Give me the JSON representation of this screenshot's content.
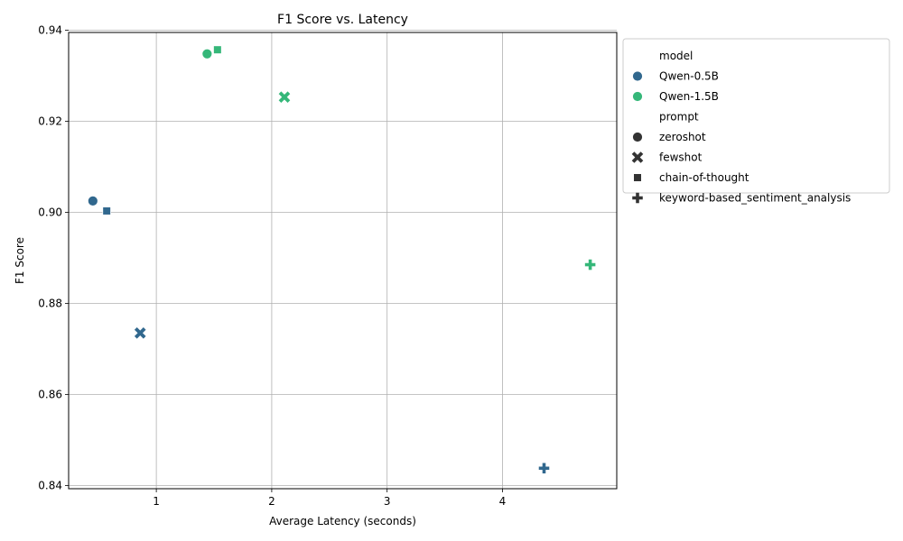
{
  "chart_data": {
    "type": "scatter",
    "title": "F1 Score vs. Latency",
    "xlabel": "Average Latency (seconds)",
    "ylabel": "F1 Score",
    "xlim": [
      0.24,
      4.99
    ],
    "ylim": [
      0.8393,
      0.9395
    ],
    "x_ticks": [
      1,
      2,
      3,
      4
    ],
    "y_ticks": [
      0.84,
      0.86,
      0.88,
      0.9,
      0.92,
      0.94
    ],
    "grid": true,
    "legend_position": "outside-top-right",
    "legend": {
      "hue_title": "model",
      "style_title": "prompt",
      "models": [
        {
          "name": "Qwen-0.5B",
          "color": "#31688e"
        },
        {
          "name": "Qwen-1.5B",
          "color": "#35b779"
        }
      ],
      "prompts": [
        {
          "name": "zeroshot",
          "marker": "circle"
        },
        {
          "name": "fewshot",
          "marker": "x"
        },
        {
          "name": "chain-of-thought",
          "marker": "square"
        },
        {
          "name": "keyword-based_sentiment_analysis",
          "marker": "plus"
        }
      ]
    },
    "points": [
      {
        "model": "Qwen-0.5B",
        "prompt": "zeroshot",
        "x": 0.45,
        "y": 0.9025
      },
      {
        "model": "Qwen-0.5B",
        "prompt": "chain-of-thought",
        "x": 0.57,
        "y": 0.9003
      },
      {
        "model": "Qwen-0.5B",
        "prompt": "fewshot",
        "x": 0.86,
        "y": 0.8735
      },
      {
        "model": "Qwen-0.5B",
        "prompt": "keyword-based_sentiment_analysis",
        "x": 4.36,
        "y": 0.8438
      },
      {
        "model": "Qwen-1.5B",
        "prompt": "zeroshot",
        "x": 1.44,
        "y": 0.9348
      },
      {
        "model": "Qwen-1.5B",
        "prompt": "chain-of-thought",
        "x": 1.53,
        "y": 0.9357
      },
      {
        "model": "Qwen-1.5B",
        "prompt": "fewshot",
        "x": 2.11,
        "y": 0.9253
      },
      {
        "model": "Qwen-1.5B",
        "prompt": "keyword-based_sentiment_analysis",
        "x": 4.76,
        "y": 0.8885
      }
    ]
  }
}
